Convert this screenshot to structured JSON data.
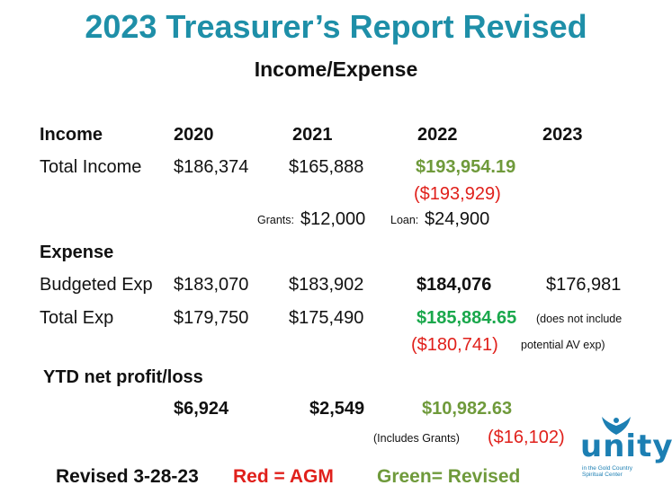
{
  "title": "2023 Treasurer’s Report Revised",
  "subtitle": "Income/Expense",
  "headers": {
    "income": "Income",
    "y2020": "2020",
    "y2021": "2021",
    "y2022": "2022",
    "y2023": "2023"
  },
  "total_income": {
    "label": "Total Income",
    "y2020": "$186,374",
    "y2021": "$165,888",
    "y2022_revised": "$193,954.19",
    "y2022_agm": "($193,929)"
  },
  "grants_loan": {
    "grants_label": "Grants:",
    "grants_value": "$12,000",
    "loan_label": "Loan: ",
    "loan_value": "$24,900"
  },
  "expense_header": "Expense",
  "budgeted_exp": {
    "label": "Budgeted Exp",
    "y2020": "$183,070",
    "y2021": "$183,902",
    "y2022": "$184,076",
    "y2023": "$176,981"
  },
  "total_exp": {
    "label": "Total Exp",
    "y2020": "$179,750",
    "y2021": "$175,490",
    "y2022_revised": "$185,884.65",
    "note_line1": "(does not include",
    "y2022_agm": "($180,741)",
    "note_line2": "potential AV exp)"
  },
  "ytd": {
    "label": "YTD net profit/loss",
    "y2020": "$6,924",
    "y2021": "$2,549",
    "y2022_revised": "$10,982.63",
    "includes_note": "(Includes Grants)",
    "y2022_agm": "($16,102)"
  },
  "footer": {
    "revised": "Revised 3-28-23",
    "red_legend": "Red = AGM",
    "green_legend": "Green= Revised"
  },
  "logo": {
    "word": "unity",
    "line1": "in the Gold Country",
    "line2": "Spiritual Center"
  },
  "colors": {
    "title": "#1e8fa8",
    "revised_green": "#6f9a3b",
    "agm_red": "#e0201b",
    "logo_blue": "#1c7fb3"
  }
}
